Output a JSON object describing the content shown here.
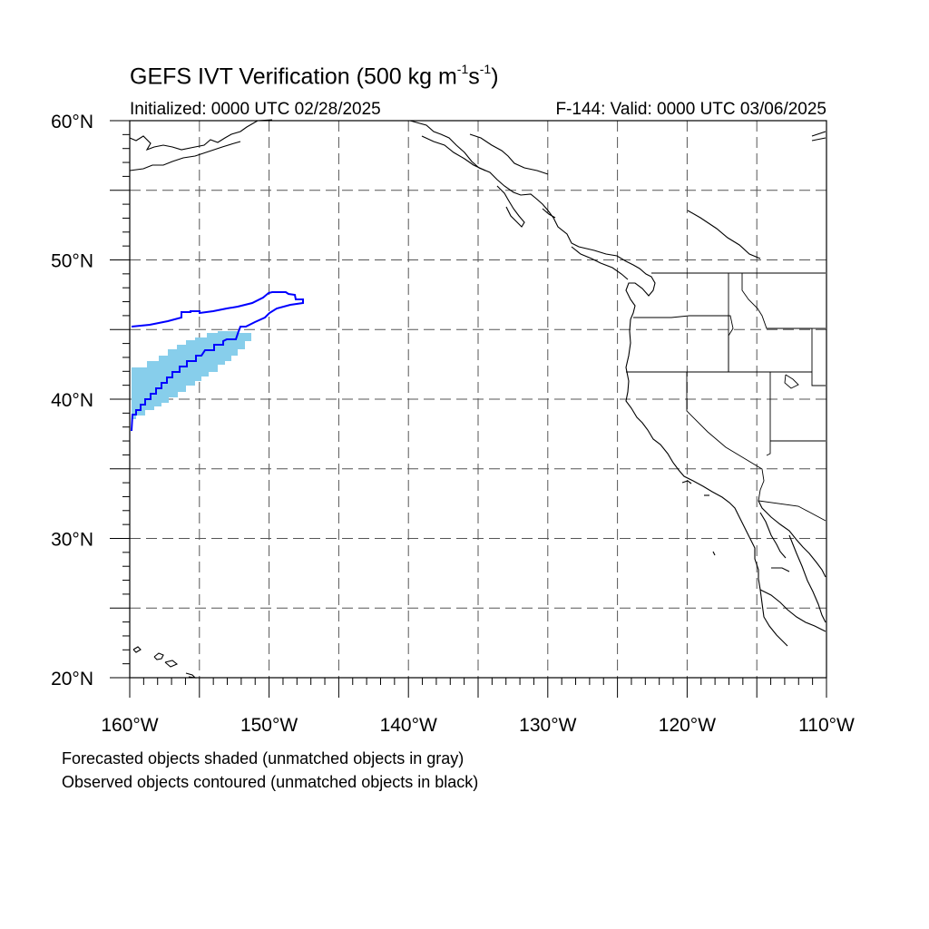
{
  "title": {
    "prefix": "GEFS IVT Verification (500 kg m",
    "exp1": "-1",
    "mid": "s",
    "exp2": "-1",
    "suffix": ")"
  },
  "initialized": "Initialized: 0000 UTC 02/28/2025",
  "valid": "F-144: Valid: 0000 UTC 03/06/2025",
  "map": {
    "lon_range": [
      -160,
      -110
    ],
    "lat_range": [
      20,
      60
    ],
    "lat_labels": [
      {
        "lat": 60,
        "text": "60°N"
      },
      {
        "lat": 50,
        "text": "50°N"
      },
      {
        "lat": 40,
        "text": "40°N"
      },
      {
        "lat": 30,
        "text": "30°N"
      },
      {
        "lat": 20,
        "text": "20°N"
      }
    ],
    "lon_labels": [
      {
        "lon": -160,
        "text": "160°W"
      },
      {
        "lon": -150,
        "text": "150°W"
      },
      {
        "lon": -140,
        "text": "140°W"
      },
      {
        "lon": -130,
        "text": "130°W"
      },
      {
        "lon": -120,
        "text": "120°W"
      },
      {
        "lon": -110,
        "text": "110°W"
      }
    ],
    "gridlines": "dashed every 5°",
    "colors": {
      "forecast_fill": "#87ceeb",
      "observed_contour": "#0000ff",
      "coastline": "#000000",
      "grid": "#555555"
    }
  },
  "captions": {
    "line1": "Forecasted objects shaded (unmatched objects in gray)",
    "line2": "Observed objects contoured (unmatched objects in black)"
  }
}
